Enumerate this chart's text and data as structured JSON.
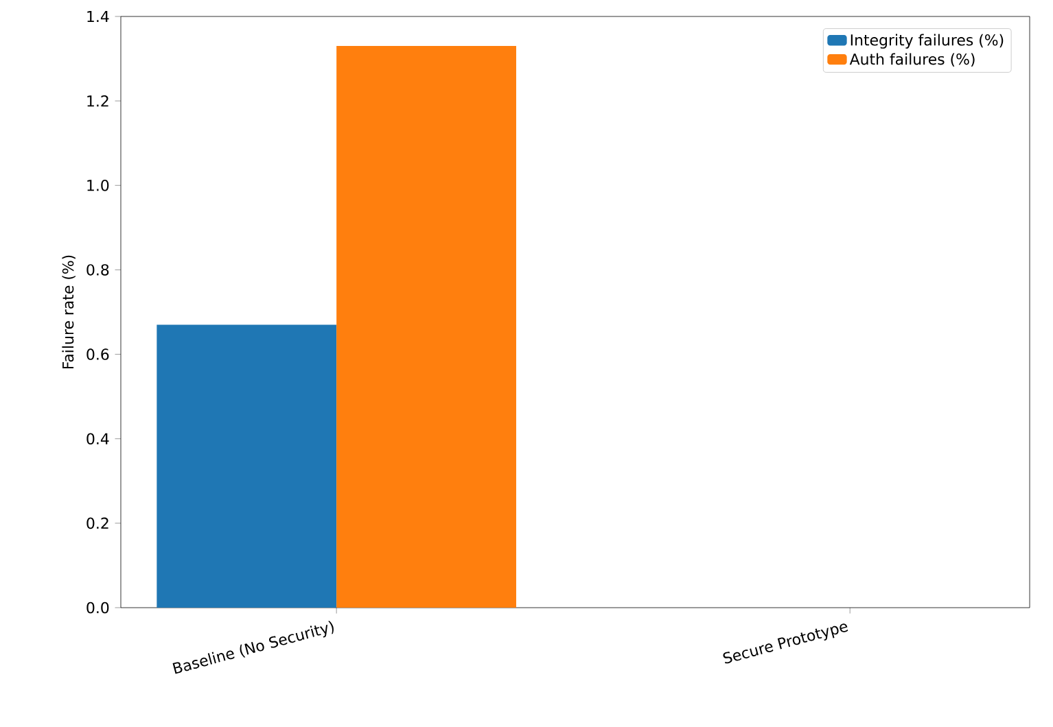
{
  "chart_data": {
    "type": "bar",
    "ylabel": "Failure rate (%)",
    "categories": [
      "Baseline (No Security)",
      "Secure Prototype"
    ],
    "series": [
      {
        "name": "Integrity failures (%)",
        "color": "#1f77b4",
        "values": [
          0.67,
          0
        ]
      },
      {
        "name": "Auth failures (%)",
        "color": "#ff7f0e",
        "values": [
          1.33,
          0
        ]
      }
    ],
    "ylim": [
      0,
      1.4
    ],
    "yticks": [
      {
        "value": 0,
        "label": "0.0"
      },
      {
        "value": 0.2,
        "label": "0.2"
      },
      {
        "value": 0.4,
        "label": "0.4"
      },
      {
        "value": 0.6,
        "label": "0.6"
      },
      {
        "value": 0.8,
        "label": "0.8"
      },
      {
        "value": 1.0,
        "label": "1.0"
      },
      {
        "value": 1.2,
        "label": "1.2"
      },
      {
        "value": 1.4,
        "label": "1.4"
      }
    ],
    "legend": "top right"
  }
}
